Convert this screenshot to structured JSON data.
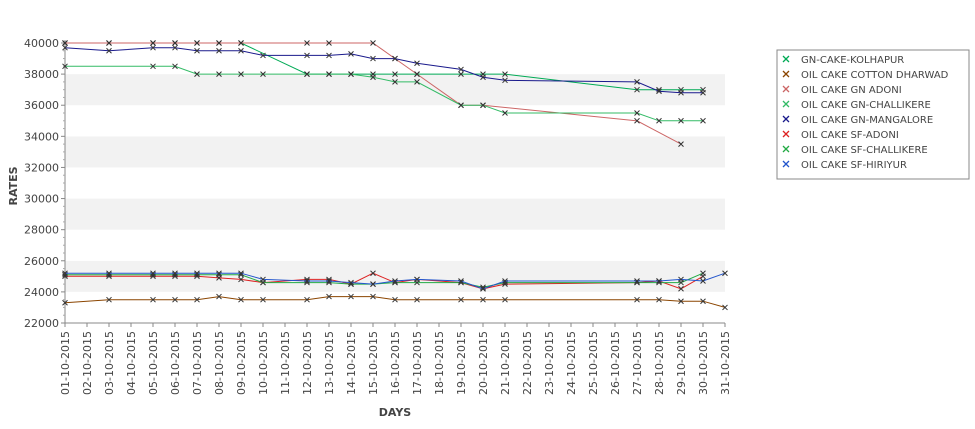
{
  "chart_data": {
    "type": "line",
    "xlabel": "DAYS",
    "ylabel": "RATES",
    "ylim": [
      22000,
      40000
    ],
    "yticks": [
      22000,
      24000,
      26000,
      28000,
      30000,
      32000,
      34000,
      36000,
      38000,
      40000
    ],
    "grid": "alternating horizontal bands",
    "legend_position": "right",
    "categories": [
      "01-10-2015",
      "02-10-2015",
      "03-10-2015",
      "04-10-2015",
      "05-10-2015",
      "06-10-2015",
      "07-10-2015",
      "08-10-2015",
      "09-10-2015",
      "10-10-2015",
      "11-10-2015",
      "12-10-2015",
      "13-10-2015",
      "14-10-2015",
      "15-10-2015",
      "16-10-2015",
      "17-10-2015",
      "18-10-2015",
      "19-10-2015",
      "20-10-2015",
      "21-10-2015",
      "22-10-2015",
      "23-10-2015",
      "24-10-2015",
      "25-10-2015",
      "26-10-2015",
      "27-10-2015",
      "28-10-2015",
      "29-10-2015",
      "30-10-2015",
      "31-10-2015"
    ],
    "series": [
      {
        "name": "GN-CAKE-KOLHAPUR",
        "color": "#00aa55",
        "points": [
          [
            0,
            40000
          ],
          [
            2,
            40000
          ],
          [
            4,
            40000
          ],
          [
            5,
            40000
          ],
          [
            6,
            40000
          ],
          [
            7,
            40000
          ],
          [
            8,
            40000
          ],
          [
            11,
            38000
          ],
          [
            12,
            38000
          ],
          [
            13,
            38000
          ],
          [
            14,
            38000
          ],
          [
            15,
            38000
          ],
          [
            16,
            38000
          ],
          [
            18,
            38000
          ],
          [
            19,
            38000
          ],
          [
            20,
            38000
          ],
          [
            26,
            37000
          ],
          [
            27,
            37000
          ],
          [
            28,
            37000
          ],
          [
            29,
            37000
          ]
        ]
      },
      {
        "name": "OIL CAKE COTTON DHARWAD",
        "color": "#8b4500",
        "points": [
          [
            0,
            23300
          ],
          [
            2,
            23500
          ],
          [
            4,
            23500
          ],
          [
            5,
            23500
          ],
          [
            6,
            23500
          ],
          [
            7,
            23700
          ],
          [
            8,
            23500
          ],
          [
            9,
            23500
          ],
          [
            11,
            23500
          ],
          [
            12,
            23700
          ],
          [
            13,
            23700
          ],
          [
            14,
            23700
          ],
          [
            15,
            23500
          ],
          [
            16,
            23500
          ],
          [
            18,
            23500
          ],
          [
            19,
            23500
          ],
          [
            20,
            23500
          ],
          [
            26,
            23500
          ],
          [
            27,
            23500
          ],
          [
            28,
            23400
          ],
          [
            29,
            23400
          ],
          [
            30,
            23000
          ]
        ]
      },
      {
        "name": "OIL CAKE GN ADONI",
        "color": "#cc6666",
        "points": [
          [
            0,
            40000
          ],
          [
            2,
            40000
          ],
          [
            4,
            40000
          ],
          [
            5,
            40000
          ],
          [
            6,
            40000
          ],
          [
            7,
            40000
          ],
          [
            8,
            40000
          ],
          [
            11,
            40000
          ],
          [
            12,
            40000
          ],
          [
            14,
            40000
          ],
          [
            15,
            39000
          ],
          [
            16,
            38000
          ],
          [
            18,
            36000
          ],
          [
            19,
            36000
          ],
          [
            26,
            35000
          ],
          [
            28,
            33500
          ]
        ]
      },
      {
        "name": "OIL CAKE GN-CHALLIKERE",
        "color": "#33bb66",
        "points": [
          [
            0,
            38500
          ],
          [
            4,
            38500
          ],
          [
            5,
            38500
          ],
          [
            6,
            38000
          ],
          [
            7,
            38000
          ],
          [
            8,
            38000
          ],
          [
            9,
            38000
          ],
          [
            11,
            38000
          ],
          [
            12,
            38000
          ],
          [
            13,
            38000
          ],
          [
            14,
            37800
          ],
          [
            15,
            37500
          ],
          [
            16,
            37500
          ],
          [
            18,
            36000
          ],
          [
            19,
            36000
          ],
          [
            20,
            35500
          ],
          [
            26,
            35500
          ],
          [
            27,
            35000
          ],
          [
            28,
            35000
          ],
          [
            29,
            35000
          ]
        ]
      },
      {
        "name": "OIL CAKE GN-MANGALORE",
        "color": "#1a1a8c",
        "points": [
          [
            0,
            39700
          ],
          [
            2,
            39500
          ],
          [
            4,
            39700
          ],
          [
            5,
            39700
          ],
          [
            6,
            39500
          ],
          [
            7,
            39500
          ],
          [
            8,
            39500
          ],
          [
            9,
            39200
          ],
          [
            11,
            39200
          ],
          [
            12,
            39200
          ],
          [
            13,
            39300
          ],
          [
            14,
            39000
          ],
          [
            15,
            39000
          ],
          [
            16,
            38700
          ],
          [
            18,
            38300
          ],
          [
            19,
            37800
          ],
          [
            20,
            37600
          ],
          [
            26,
            37500
          ],
          [
            27,
            36900
          ],
          [
            28,
            36800
          ],
          [
            29,
            36800
          ]
        ]
      },
      {
        "name": "OIL CAKE SF-ADONI",
        "color": "#dd2222",
        "points": [
          [
            0,
            25000
          ],
          [
            2,
            25000
          ],
          [
            4,
            25000
          ],
          [
            5,
            25000
          ],
          [
            6,
            25000
          ],
          [
            7,
            24900
          ],
          [
            8,
            24800
          ],
          [
            9,
            24600
          ],
          [
            11,
            24800
          ],
          [
            12,
            24800
          ],
          [
            13,
            24500
          ],
          [
            14,
            25200
          ],
          [
            15,
            24600
          ],
          [
            16,
            24800
          ],
          [
            18,
            24600
          ],
          [
            19,
            24200
          ],
          [
            20,
            24500
          ],
          [
            26,
            24600
          ],
          [
            27,
            24700
          ],
          [
            28,
            24200
          ],
          [
            29,
            25000
          ]
        ]
      },
      {
        "name": "OIL CAKE SF-CHALLIKERE",
        "color": "#22aa44",
        "points": [
          [
            0,
            25100
          ],
          [
            2,
            25100
          ],
          [
            4,
            25100
          ],
          [
            5,
            25100
          ],
          [
            6,
            25100
          ],
          [
            7,
            25100
          ],
          [
            8,
            25100
          ],
          [
            9,
            24600
          ],
          [
            11,
            24600
          ],
          [
            12,
            24600
          ],
          [
            13,
            24500
          ],
          [
            14,
            24500
          ],
          [
            15,
            24600
          ],
          [
            16,
            24600
          ],
          [
            18,
            24600
          ],
          [
            19,
            24300
          ],
          [
            20,
            24600
          ],
          [
            26,
            24600
          ],
          [
            27,
            24600
          ],
          [
            28,
            24600
          ],
          [
            29,
            25200
          ]
        ]
      },
      {
        "name": "OIL CAKE SF-HIRIYUR",
        "color": "#2255cc",
        "points": [
          [
            0,
            25200
          ],
          [
            2,
            25200
          ],
          [
            4,
            25200
          ],
          [
            5,
            25200
          ],
          [
            6,
            25200
          ],
          [
            7,
            25200
          ],
          [
            8,
            25200
          ],
          [
            9,
            24800
          ],
          [
            11,
            24700
          ],
          [
            12,
            24700
          ],
          [
            13,
            24600
          ],
          [
            14,
            24500
          ],
          [
            15,
            24700
          ],
          [
            16,
            24800
          ],
          [
            18,
            24700
          ],
          [
            19,
            24200
          ],
          [
            20,
            24700
          ],
          [
            26,
            24700
          ],
          [
            27,
            24700
          ],
          [
            28,
            24800
          ],
          [
            29,
            24700
          ],
          [
            30,
            25200
          ]
        ]
      }
    ]
  }
}
